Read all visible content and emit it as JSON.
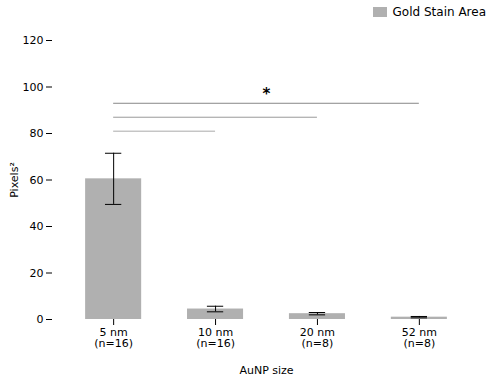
{
  "chart_data": {
    "type": "bar",
    "categories": [
      "5 nm\n(n=16)",
      "10 nm\n(n=16)",
      "20 nm\n(n=8)",
      "52 nm\n(n=8)"
    ],
    "series": [
      {
        "name": "Gold Stain Area",
        "color": "#b0b0b0",
        "values": [
          60.5,
          4.5,
          2.5,
          1.0
        ],
        "errors": [
          11.0,
          1.2,
          0.5,
          0.3
        ]
      }
    ],
    "xlabel": "AuNP size",
    "ylabel": "Pixels²",
    "ylim": [
      0,
      120
    ],
    "yticks": [
      0,
      20,
      40,
      60,
      80,
      100,
      120
    ],
    "legend": "upper right",
    "grid": false,
    "annotations": [
      {
        "from": "5 nm\n(n=16)",
        "to": "52 nm\n(n=8)",
        "y": 93,
        "label": "*",
        "color": "#888888"
      },
      {
        "from": "5 nm\n(n=16)",
        "to": "20 nm\n(n=8)",
        "y": 87,
        "color": "#999999"
      },
      {
        "from": "5 nm\n(n=16)",
        "to": "10 nm\n(n=16)",
        "y": 81,
        "color": "#aaaaaa"
      }
    ]
  }
}
